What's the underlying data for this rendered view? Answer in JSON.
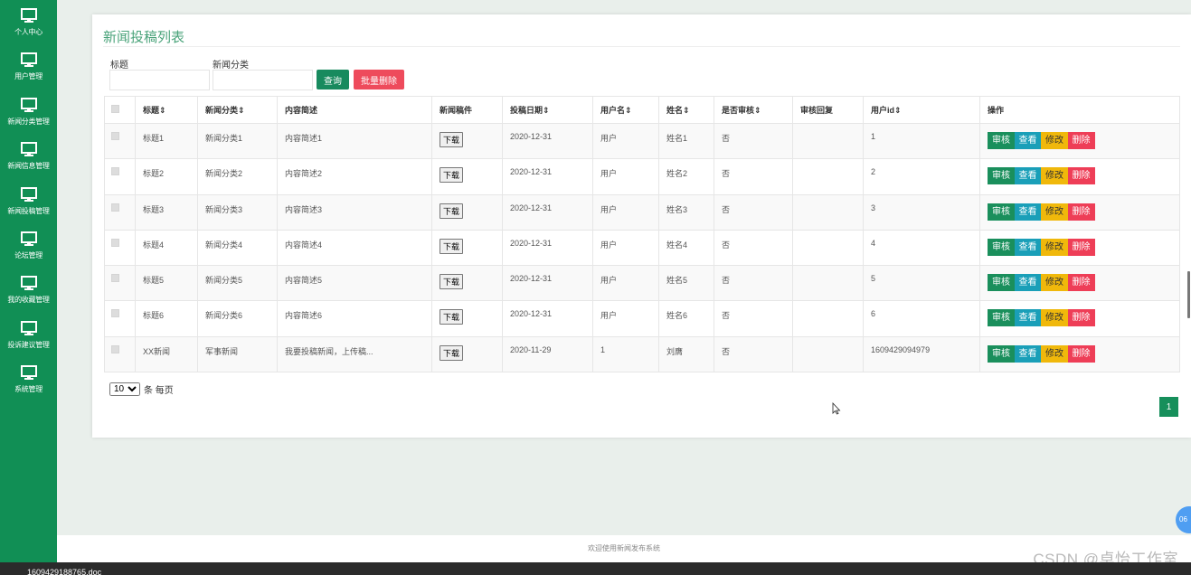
{
  "sidebar": {
    "items": [
      {
        "label": "个人中心",
        "icon": "monitor-icon"
      },
      {
        "label": "用户管理",
        "icon": "monitor-icon"
      },
      {
        "label": "新闻分类管理",
        "icon": "monitor-icon"
      },
      {
        "label": "新闻信息管理",
        "icon": "monitor-icon"
      },
      {
        "label": "新闻投稿管理",
        "icon": "monitor-icon"
      },
      {
        "label": "论坛管理",
        "icon": "monitor-icon"
      },
      {
        "label": "我的收藏管理",
        "icon": "monitor-icon"
      },
      {
        "label": "投诉建议管理",
        "icon": "monitor-icon"
      },
      {
        "label": "系统管理",
        "icon": "monitor-icon"
      }
    ]
  },
  "page": {
    "title": "新闻投稿列表"
  },
  "filters": {
    "title_label": "标题",
    "title_value": "",
    "category_label": "新闻分类",
    "category_value": "",
    "query_button": "查询",
    "batch_delete_button": "批量删除"
  },
  "table": {
    "headers": [
      "标题",
      "新闻分类",
      "内容简述",
      "新闻稿件",
      "投稿日期",
      "用户名",
      "姓名",
      "是否审核",
      "审核回复",
      "用户id",
      "操作"
    ],
    "download_label": "下载",
    "actions": {
      "audit": "审核",
      "view": "查看",
      "edit": "修改",
      "delete": "删除"
    },
    "rows": [
      {
        "title": "标题1",
        "category": "新闻分类1",
        "summary": "内容简述1",
        "date": "2020-12-31",
        "username": "用户",
        "name": "姓名1",
        "audited": "否",
        "reply": "",
        "user_id": "1"
      },
      {
        "title": "标题2",
        "category": "新闻分类2",
        "summary": "内容简述2",
        "date": "2020-12-31",
        "username": "用户",
        "name": "姓名2",
        "audited": "否",
        "reply": "",
        "user_id": "2"
      },
      {
        "title": "标题3",
        "category": "新闻分类3",
        "summary": "内容简述3",
        "date": "2020-12-31",
        "username": "用户",
        "name": "姓名3",
        "audited": "否",
        "reply": "",
        "user_id": "3"
      },
      {
        "title": "标题4",
        "category": "新闻分类4",
        "summary": "内容简述4",
        "date": "2020-12-31",
        "username": "用户",
        "name": "姓名4",
        "audited": "否",
        "reply": "",
        "user_id": "4"
      },
      {
        "title": "标题5",
        "category": "新闻分类5",
        "summary": "内容简述5",
        "date": "2020-12-31",
        "username": "用户",
        "name": "姓名5",
        "audited": "否",
        "reply": "",
        "user_id": "5"
      },
      {
        "title": "标题6",
        "category": "新闻分类6",
        "summary": "内容简述6",
        "date": "2020-12-31",
        "username": "用户",
        "name": "姓名6",
        "audited": "否",
        "reply": "",
        "user_id": "6"
      },
      {
        "title": "XX新闻",
        "category": "军事新闻",
        "summary": "我要投稿新闻，上传稿...",
        "date": "2020-11-29",
        "username": "1",
        "name": "刘膺",
        "audited": "否",
        "reply": "",
        "user_id": "1609429094979"
      }
    ]
  },
  "pagination": {
    "per_page": "10",
    "per_page_suffix": "条 每页",
    "current_page": "1"
  },
  "footer": {
    "text": "欢迎使用新闻发布系统"
  },
  "watermark": "CSDN @卓怡工作室",
  "taskbar": {
    "file": "1609429188765.doc"
  },
  "fab": {
    "text": "06"
  },
  "colors": {
    "primary": "#118f55",
    "danger": "#ee4b5c",
    "info": "#1a9fb8",
    "warning": "#f0b80b"
  }
}
